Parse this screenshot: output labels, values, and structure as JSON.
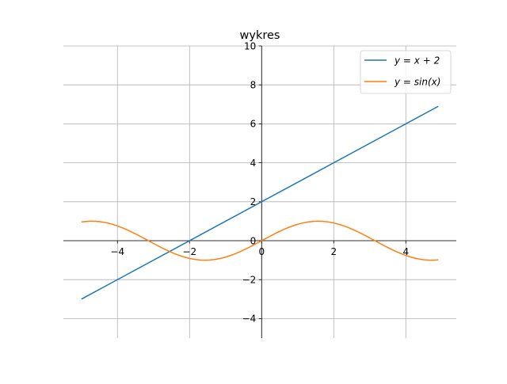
{
  "chart_data": {
    "type": "line",
    "title": "wykres",
    "xlabel": "",
    "ylabel": "",
    "xlim": [
      -5.5,
      5.4
    ],
    "ylim": [
      -5,
      10
    ],
    "x_ticks": [
      -4,
      -2,
      0,
      2,
      4
    ],
    "x_tick_labels": [
      "−4",
      "−2",
      "0",
      "2",
      "4"
    ],
    "y_ticks": [
      -4,
      -2,
      0,
      2,
      4,
      6,
      8,
      10
    ],
    "y_tick_labels": [
      "−4",
      "−2",
      "0",
      "2",
      "4",
      "6",
      "8",
      "10"
    ],
    "grid": true,
    "spines": "centered",
    "legend": "top-right",
    "series": [
      {
        "name": "y = x + 2",
        "color": "#1f77b4",
        "formula": "x + 2",
        "x": [
          -5.0,
          4.9
        ],
        "y": [
          -3.0,
          6.9
        ]
      },
      {
        "name": "y = sin(x)",
        "color": "#ff7f0e",
        "formula": "sin(x)",
        "x": [
          -5.0,
          -4.712,
          -4.0,
          -3.0,
          -2.0,
          -1.571,
          -1.0,
          0.0,
          1.0,
          1.571,
          2.0,
          3.0,
          4.0,
          4.712,
          4.9
        ],
        "y": [
          0.959,
          1.0,
          0.757,
          -0.141,
          -0.909,
          -1.0,
          -0.841,
          0.0,
          0.841,
          1.0,
          0.909,
          0.141,
          -0.757,
          -1.0,
          -0.982
        ]
      }
    ]
  }
}
